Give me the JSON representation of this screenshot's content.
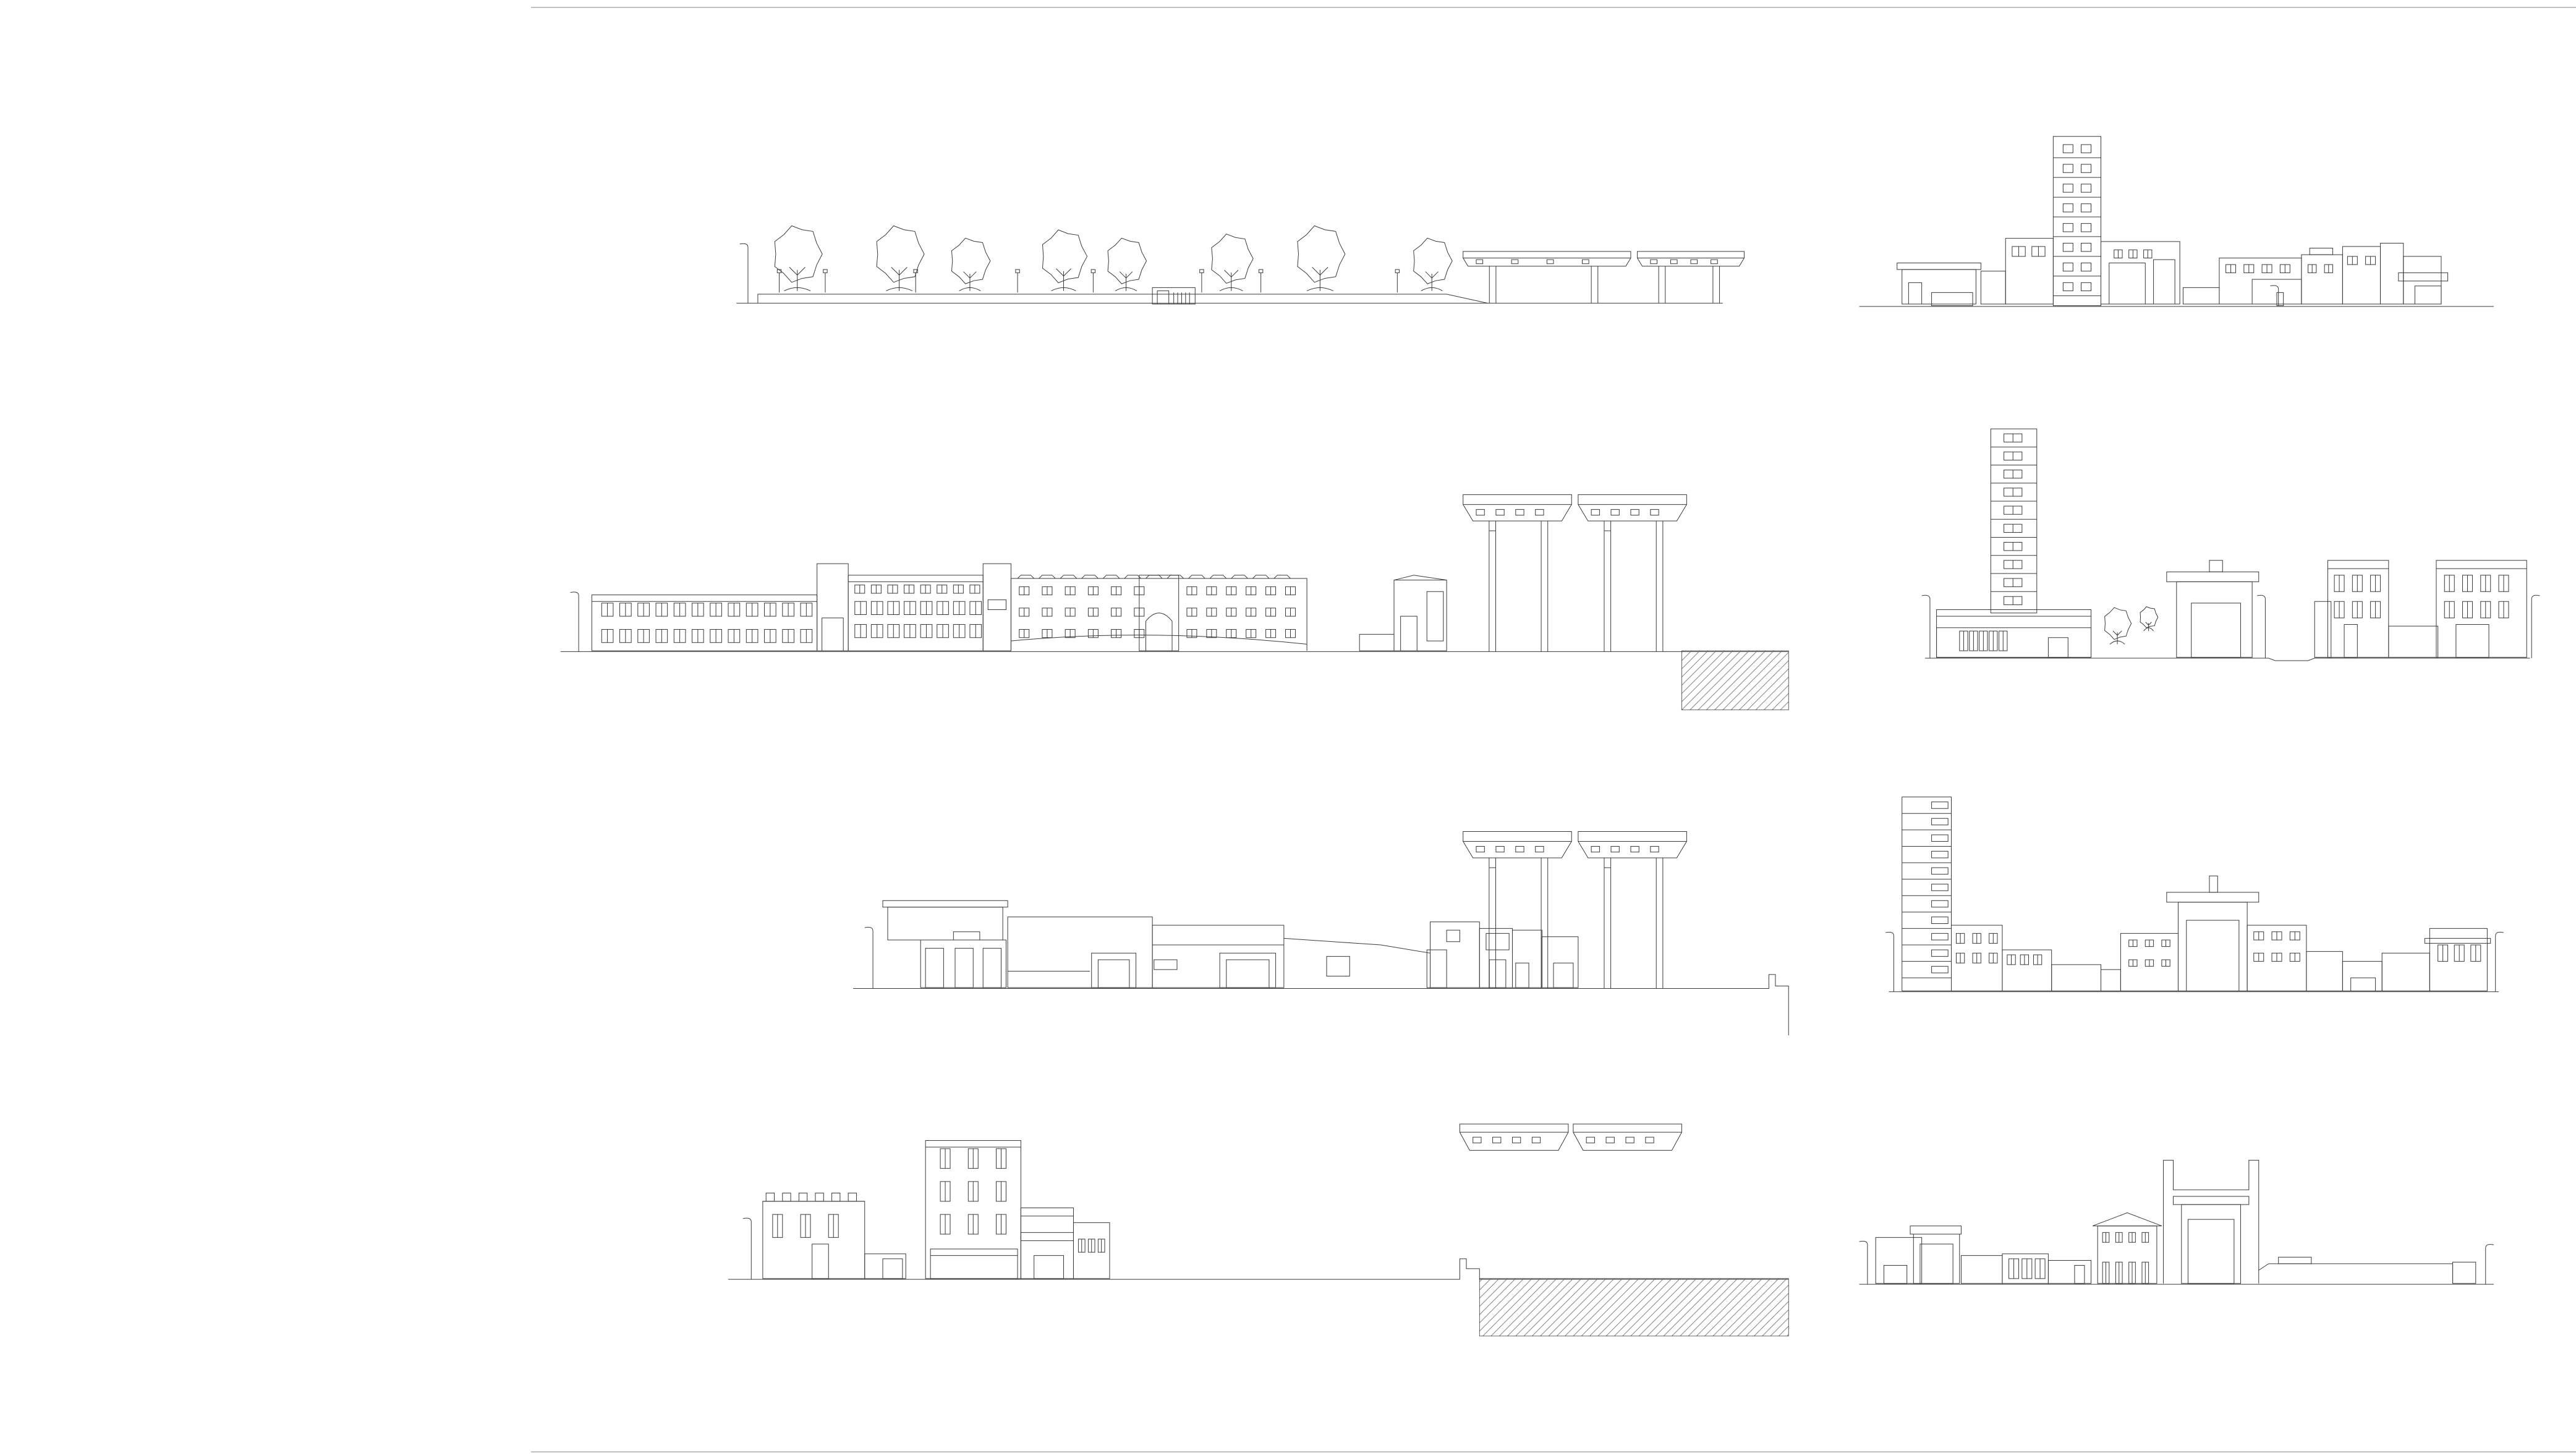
{
  "sheet": {
    "title": "",
    "background_color": "#ffffff",
    "line_color": "#3a3a3a",
    "frame_color": "#9a9a9a",
    "hatch_color": "#6a6a6a"
  },
  "elevations": [
    {
      "id": "row1-left",
      "content": [
        "tree-row",
        "street-lamps",
        "kiosk",
        "elevated-viaduct"
      ]
    },
    {
      "id": "row1-right",
      "content": [
        "tower-block",
        "low-rise-houses",
        "street-lamp"
      ]
    },
    {
      "id": "row2-left",
      "content": [
        "long-industrial-building",
        "office-block",
        "small-house",
        "viaduct-piers",
        "section-hatch"
      ]
    },
    {
      "id": "row2-right",
      "content": [
        "tower-block",
        "trees",
        "portal-gate",
        "apartment-blocks",
        "street-lamps"
      ]
    },
    {
      "id": "row3-left",
      "content": [
        "warehouse",
        "hangar-sheds",
        "small-houses",
        "viaduct-piers",
        "street-lamp"
      ]
    },
    {
      "id": "row3-right",
      "content": [
        "tower-block",
        "row-houses",
        "portal-gate",
        "shops",
        "street-lamps"
      ]
    },
    {
      "id": "row4-left",
      "content": [
        "villa",
        "apartment-building",
        "annex",
        "viaduct-deck",
        "section-hatch"
      ]
    },
    {
      "id": "row4-right",
      "content": [
        "garage",
        "temple-pavilion",
        "portal-gate",
        "wall",
        "street-lamps"
      ]
    }
  ],
  "symbols": [
    "tree-icon",
    "street-lamp-icon",
    "viaduct-icon",
    "hatch-pattern"
  ]
}
